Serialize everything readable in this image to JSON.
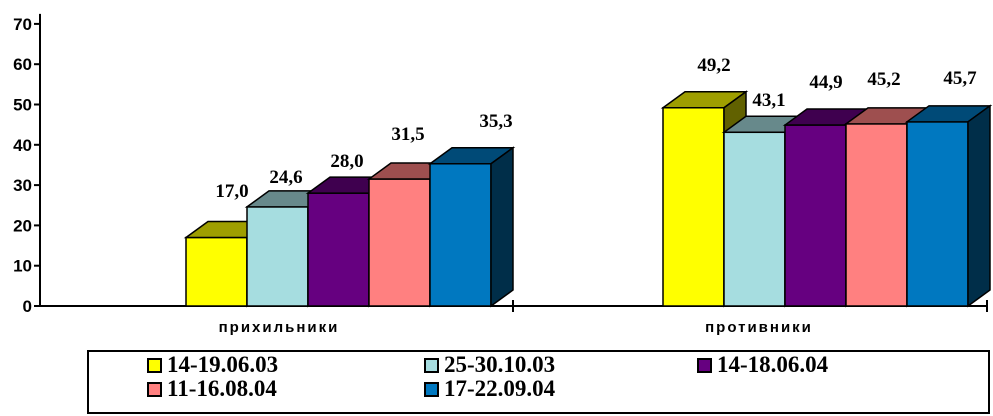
{
  "chart_data": {
    "type": "bar",
    "categories": [
      "прихильники",
      "противники"
    ],
    "series": [
      {
        "name": "14-19.06.03",
        "values": [
          17.0,
          49.2
        ],
        "labels": [
          "17,0",
          "49,2"
        ],
        "color": "#FFFF00"
      },
      {
        "name": "25-30.10.03",
        "values": [
          24.6,
          43.1
        ],
        "labels": [
          "24,6",
          "43,1"
        ],
        "color": "#A6DDE0"
      },
      {
        "name": "14-18.06.04",
        "values": [
          28.0,
          44.9
        ],
        "labels": [
          "28,0",
          "44,9"
        ],
        "color": "#660080"
      },
      {
        "name": "11-16.08.04",
        "values": [
          31.5,
          45.2
        ],
        "labels": [
          "31,5",
          "45,2"
        ],
        "color": "#FF8080"
      },
      {
        "name": "17-22.09.04",
        "values": [
          35.3,
          45.7
        ],
        "labels": [
          "35,3",
          "45,7"
        ],
        "color": "#0078C0"
      }
    ],
    "yticks": [
      0,
      10,
      20,
      30,
      40,
      50,
      60,
      70
    ],
    "ylim": [
      0,
      70
    ],
    "title": "",
    "xlabel": "",
    "ylabel": "",
    "legend": "bottom",
    "grid": false,
    "style": "3d"
  }
}
